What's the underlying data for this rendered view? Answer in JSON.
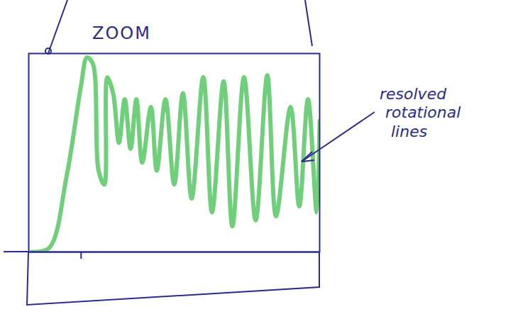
{
  "chart_data": {
    "type": "line",
    "title": "ZOOM",
    "annotations": [
      {
        "text": "resolved rotational lines"
      }
    ],
    "x": [
      1,
      7,
      13,
      18,
      20,
      22,
      24,
      26,
      27,
      29,
      31,
      33,
      35,
      37,
      39,
      42,
      44,
      47,
      50,
      53,
      56,
      60,
      63,
      67,
      70,
      74,
      78,
      82,
      85,
      90,
      93,
      96,
      99,
      100
    ],
    "values": [
      0,
      2,
      38,
      84,
      98,
      95,
      41,
      34,
      88,
      80,
      55,
      77,
      52,
      77,
      45,
      73,
      41,
      77,
      34,
      80,
      27,
      88,
      20,
      86,
      13,
      88,
      16,
      89,
      18,
      73,
      23,
      77,
      20,
      66
    ],
    "color": "#6fcf7a",
    "xlim": [
      0,
      100
    ],
    "ylim": [
      0,
      100
    ],
    "xticks": [
      18
    ],
    "yticks": [],
    "tick_labels": false
  }
}
